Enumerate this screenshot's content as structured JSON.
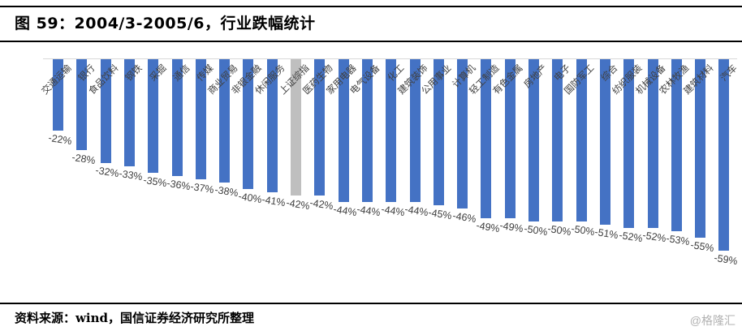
{
  "title": {
    "text": "图 59：2004/3-2005/6，行业跌幅统计"
  },
  "footer": {
    "text": "资料来源：wind，国信证券经济研究所整理"
  },
  "watermark": {
    "text": "@格隆汇"
  },
  "chart_data": {
    "type": "bar",
    "title": "2004/3-2005/6，行业跌幅统计",
    "orientation": "vertical-negative-from-top-baseline",
    "xlabel": "",
    "ylabel": "",
    "ylim": [
      -59,
      0
    ],
    "grid": false,
    "legend": false,
    "value_unit": "percent",
    "categories": [
      "交通运输",
      "银行",
      "食品饮料",
      "钢铁",
      "采掘",
      "通信",
      "传媒",
      "商业贸易",
      "非银金融",
      "休闲服务",
      "上证综指",
      "医药生物",
      "家用电器",
      "电气设备",
      "化工",
      "建筑装饰",
      "公用事业",
      "计算机",
      "轻工制造",
      "有色金属",
      "房地产",
      "电子",
      "国防军工",
      "综合",
      "纺织服装",
      "机械设备",
      "农林牧渔",
      "建筑材料",
      "汽车"
    ],
    "values": [
      -22,
      -28,
      -32,
      -33,
      -35,
      -36,
      -37,
      -38,
      -40,
      -41,
      -42,
      -42,
      -44,
      -44,
      -44,
      -44,
      -45,
      -46,
      -49,
      -49,
      -50,
      -50,
      -50,
      -51,
      -52,
      -52,
      -53,
      -55,
      -59
    ],
    "value_labels": [
      "-22%",
      "-28%",
      "-32%",
      "-33%",
      "-35%",
      "-36%",
      "-37%",
      "-38%",
      "-40%",
      "-41%",
      "-42%",
      "-42%",
      "-44%",
      "-44%",
      "-44%",
      "-44%",
      "-45%",
      "-46%",
      "-49%",
      "-49%",
      "-50%",
      "-50%",
      "-50%",
      "-51%",
      "-52%",
      "-52%",
      "-53%",
      "-55%",
      "-59%"
    ],
    "highlight_category": "上证综指",
    "highlight_index": 10,
    "bar_color": "#4472C4",
    "highlight_color": "#BFBFBF",
    "axis_line_color": "#D9D9D9",
    "label_color": "#404040"
  }
}
